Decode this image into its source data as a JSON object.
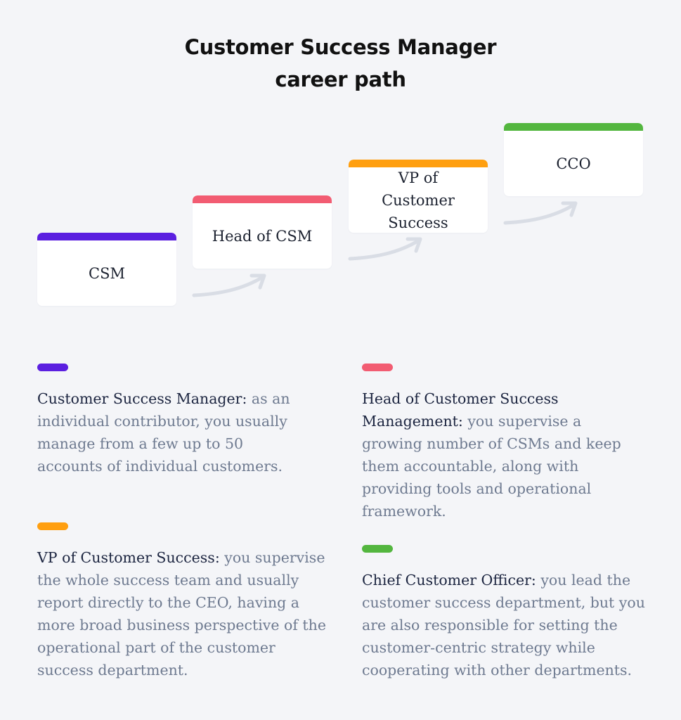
{
  "title": {
    "line1": "Customer Success Manager",
    "line2": "career path"
  },
  "colors": {
    "csm": "#5b1fe0",
    "head": "#f25c72",
    "vp": "#ff9f10",
    "cco": "#53b63f",
    "arrow": "#d9dde5"
  },
  "steps": [
    {
      "label": "CSM",
      "icon": "purple-bar"
    },
    {
      "label": "Head of CSM",
      "icon": "pink-bar"
    },
    {
      "label": "VP of Customer Success",
      "icon": "orange-bar"
    },
    {
      "label": "CCO",
      "icon": "green-bar"
    }
  ],
  "descriptions": [
    {
      "lead": "Customer Success Manager:",
      "body": " as an individual contributor, you usually manage from a few up to 50 accounts of individual customers."
    },
    {
      "lead": "Head of Customer Success Management:",
      "body": "  you supervise a growing number of CSMs and keep them accountable, along with providing tools and operational framework."
    },
    {
      "lead": "VP of Customer Success:",
      "body": " you supervise the whole success team and usually report directly to the CEO, having a more broad business perspective of the operational part of the customer success department."
    },
    {
      "lead": "Chief Customer Officer:",
      "body": " you lead the customer success department, but you are also responsible for setting the customer-centric strategy while cooperating with other departments."
    }
  ]
}
